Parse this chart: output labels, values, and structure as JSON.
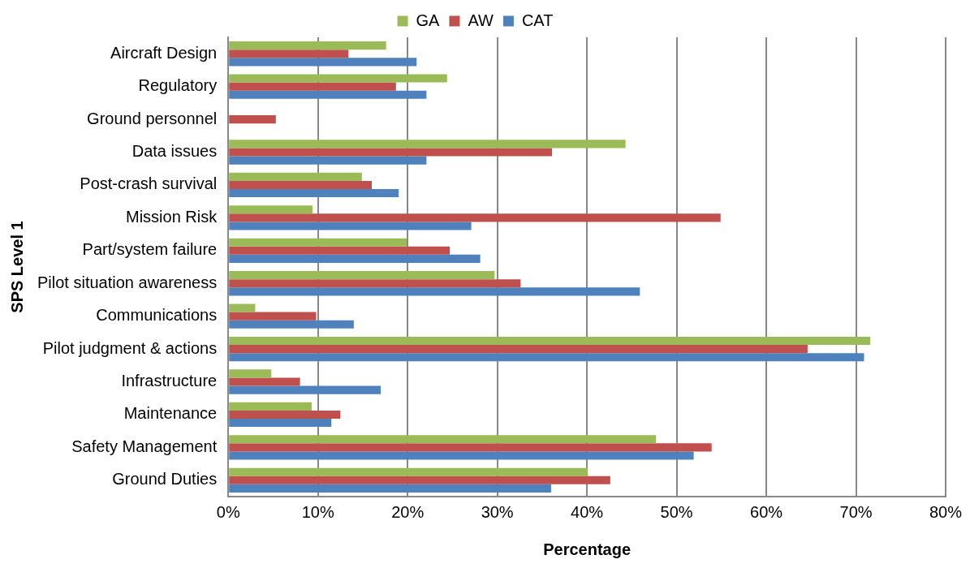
{
  "chart_data": {
    "type": "bar",
    "orientation": "horizontal",
    "xlabel": "Percentage",
    "ylabel": "SPS Level 1",
    "categories": [
      "Aircraft Design",
      "Regulatory",
      "Ground personnel",
      "Data issues",
      "Post-crash survival",
      "Mission Risk",
      "Part/system failure",
      "Pilot situation awareness",
      "Communications",
      "Pilot judgment & actions",
      "Infrastructure",
      "Maintenance",
      "Safety Management",
      "Ground Duties"
    ],
    "series": [
      {
        "name": "GA",
        "color": "#9bbb59",
        "values": [
          17.6,
          24.4,
          0,
          44.3,
          14.9,
          9.4,
          19.9,
          29.7,
          3.0,
          71.6,
          4.8,
          9.3,
          47.7,
          40.1
        ]
      },
      {
        "name": "AW",
        "color": "#c0504d",
        "values": [
          13.4,
          18.7,
          5.3,
          36.1,
          16.0,
          54.9,
          24.7,
          32.6,
          9.8,
          64.6,
          8.0,
          12.5,
          53.9,
          42.6
        ]
      },
      {
        "name": "CAT",
        "color": "#4f81bd",
        "values": [
          21.0,
          22.1,
          0,
          22.1,
          19.0,
          27.1,
          28.1,
          45.9,
          14.0,
          70.9,
          17.0,
          11.5,
          51.9,
          36.0
        ]
      }
    ],
    "xlim": [
      0,
      80
    ],
    "xticks": [
      {
        "value": 0,
        "label": "0%"
      },
      {
        "value": 10,
        "label": "10%"
      },
      {
        "value": 20,
        "label": "20%"
      },
      {
        "value": 30,
        "label": "30%"
      },
      {
        "value": 40,
        "label": "40%"
      },
      {
        "value": 50,
        "label": "50%"
      },
      {
        "value": 60,
        "label": "60%"
      },
      {
        "value": 70,
        "label": "70%"
      },
      {
        "value": 80,
        "label": "80%"
      }
    ],
    "grid": "x",
    "legend": "top"
  }
}
